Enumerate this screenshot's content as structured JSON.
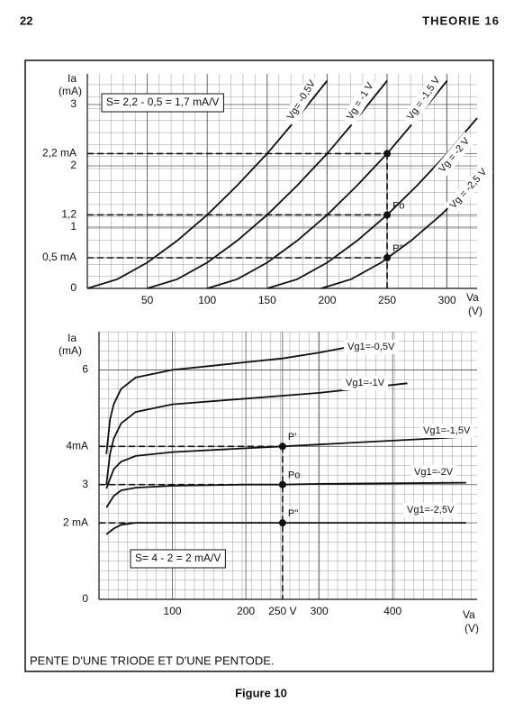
{
  "page": {
    "number": "22",
    "header": "THEORIE 16",
    "caption": "PENTE D'UNE TRIODE ET D'UNE PENTODE.",
    "figure": "Figure 10"
  },
  "chart_data": [
    {
      "type": "line",
      "annotation": "S= 2,2 - 0,5 = 1,7 mA/V",
      "ylabel": [
        "Ia",
        "(mA)"
      ],
      "xlabel": [
        "Va",
        "(V)"
      ],
      "xlim": [
        0,
        325
      ],
      "ylim": [
        0,
        3.5
      ],
      "xticks": [
        50,
        100,
        150,
        200,
        250,
        300
      ],
      "yticks": [
        0,
        {
          "value": 0.5,
          "label": "0,5 mA"
        },
        1,
        {
          "value": 1.2,
          "label": "1,2"
        },
        2,
        {
          "value": 2.2,
          "label": "2,2 mA"
        },
        3
      ],
      "grid": true,
      "series": [
        {
          "name": "Vg= -0,5V",
          "color": "#111111",
          "x": [
            0,
            25,
            50,
            75,
            100,
            125,
            150,
            175,
            200
          ],
          "values": [
            0,
            0.15,
            0.42,
            0.78,
            1.2,
            1.68,
            2.2,
            2.78,
            3.39
          ]
        },
        {
          "name": "Vg = -1 V",
          "color": "#111111",
          "x": [
            50,
            75,
            100,
            125,
            150,
            175,
            200,
            225,
            250
          ],
          "values": [
            0,
            0.15,
            0.42,
            0.78,
            1.2,
            1.68,
            2.2,
            2.78,
            3.39
          ]
        },
        {
          "name": "Vg = -1,5 V",
          "color": "#111111",
          "x": [
            100,
            125,
            150,
            175,
            200,
            225,
            250,
            275,
            300
          ],
          "values": [
            0,
            0.15,
            0.42,
            0.78,
            1.2,
            1.68,
            2.2,
            2.78,
            3.39
          ]
        },
        {
          "name": "Vg = -2 V",
          "color": "#111111",
          "x": [
            150,
            175,
            200,
            225,
            250,
            275,
            300,
            325
          ],
          "values": [
            0,
            0.15,
            0.42,
            0.78,
            1.2,
            1.68,
            2.2,
            2.78
          ]
        },
        {
          "name": "Vg = -2,5 V",
          "color": "#111111",
          "x": [
            195,
            220,
            245,
            270,
            295,
            320
          ],
          "values": [
            0,
            0.15,
            0.42,
            0.78,
            1.2,
            1.68
          ]
        }
      ],
      "points": {
        "x": [
          250,
          250,
          250
        ],
        "y": [
          2.2,
          1.2,
          0.5
        ],
        "labels": [
          null,
          "Po",
          "P''"
        ]
      }
    },
    {
      "type": "line",
      "annotation": "S= 4 - 2 = 2 mA/V",
      "ylabel": [
        "Ia",
        "(mA)"
      ],
      "xlabel": [
        "Va",
        "(V)"
      ],
      "xlim": [
        0,
        515
      ],
      "ylim": [
        0,
        7
      ],
      "xticks": [
        100,
        200,
        {
          "value": 250,
          "label": "250 V"
        },
        300,
        400
      ],
      "yticks": [
        0,
        {
          "value": 2,
          "label": "2 mA"
        },
        3,
        {
          "value": 4,
          "label": "4mA"
        },
        6
      ],
      "grid": true,
      "series": [
        {
          "name": "Vg1=-0,5V",
          "color": "#111111",
          "x": [
            10,
            15,
            20,
            30,
            50,
            100,
            150,
            200,
            250,
            300,
            340
          ],
          "values": [
            3.8,
            4.7,
            5.1,
            5.5,
            5.8,
            6.0,
            6.1,
            6.2,
            6.3,
            6.45,
            6.6
          ]
        },
        {
          "name": "Vg1=-1V",
          "color": "#111111",
          "x": [
            10,
            15,
            20,
            30,
            50,
            100,
            200,
            300,
            420
          ],
          "values": [
            3.0,
            3.8,
            4.2,
            4.6,
            4.9,
            5.1,
            5.25,
            5.4,
            5.65
          ]
        },
        {
          "name": "Vg1=-1,5V",
          "color": "#111111",
          "x": [
            10,
            20,
            30,
            50,
            100,
            200,
            250,
            300,
            350,
            500
          ],
          "values": [
            2.9,
            3.4,
            3.6,
            3.75,
            3.85,
            3.95,
            4.0,
            4.05,
            4.1,
            4.25
          ]
        },
        {
          "name": "Vg1=-2V",
          "color": "#111111",
          "x": [
            10,
            20,
            30,
            50,
            100,
            200,
            250,
            300,
            500
          ],
          "values": [
            2.4,
            2.7,
            2.85,
            2.92,
            2.97,
            3.0,
            3.0,
            3.02,
            3.05
          ]
        },
        {
          "name": "Vg1=-2,5V",
          "color": "#111111",
          "x": [
            10,
            20,
            30,
            50,
            100,
            250,
            500
          ],
          "values": [
            1.7,
            1.85,
            1.95,
            2.0,
            2.0,
            2.0,
            2.0
          ]
        }
      ],
      "points": {
        "x": [
          250,
          250,
          250
        ],
        "y": [
          4,
          3,
          2
        ],
        "labels": [
          "P'",
          "Po",
          "P''"
        ]
      }
    }
  ]
}
